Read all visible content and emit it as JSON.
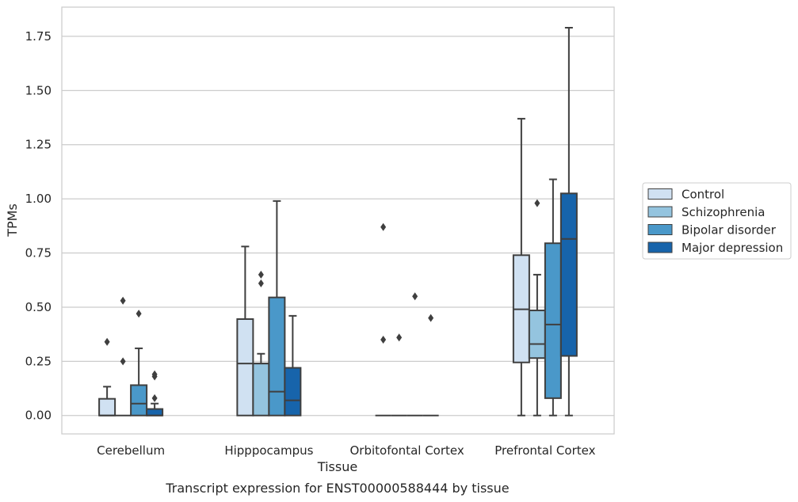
{
  "chart_data": {
    "type": "box",
    "title": "",
    "caption": "Transcript expression for ENST00000588444 by tissue",
    "xlabel": "Tissue",
    "ylabel": "TPMs",
    "ylim": [
      -0.085,
      1.885
    ],
    "yticks": [
      "0.00",
      "0.25",
      "0.50",
      "0.75",
      "1.00",
      "1.25",
      "1.50",
      "1.75"
    ],
    "grid": "horizontal",
    "legend_position": "right",
    "categories": [
      "Cerebellum",
      "Hipppocampus",
      "Orbitofontal Cortex",
      "Prefrontal Cortex"
    ],
    "series": [
      {
        "name": "Control",
        "color": "#d0e1f2",
        "boxes": [
          {
            "whisker_low": 0.0,
            "q1": 0.0,
            "median": 0.0,
            "q3": 0.077,
            "whisker_high": 0.133,
            "outliers": [
              0.34
            ]
          },
          {
            "whisker_low": 0.0,
            "q1": 0.0,
            "median": 0.24,
            "q3": 0.445,
            "whisker_high": 0.78,
            "outliers": []
          },
          {
            "whisker_low": 0.0,
            "q1": 0.0,
            "median": 0.0,
            "q3": 0.0,
            "whisker_high": 0.0,
            "outliers": [
              0.35,
              0.87
            ]
          },
          {
            "whisker_low": 0.0,
            "q1": 0.245,
            "median": 0.49,
            "q3": 0.74,
            "whisker_high": 1.37,
            "outliers": []
          }
        ]
      },
      {
        "name": "Schizophrenia",
        "color": "#94c4df",
        "boxes": [
          {
            "whisker_low": 0.0,
            "q1": 0.0,
            "median": 0.0,
            "q3": 0.0,
            "whisker_high": 0.0,
            "outliers": [
              0.25,
              0.53
            ]
          },
          {
            "whisker_low": 0.0,
            "q1": 0.0,
            "median": 0.24,
            "q3": 0.24,
            "whisker_high": 0.285,
            "outliers": [
              0.61,
              0.65
            ]
          },
          {
            "whisker_low": 0.0,
            "q1": 0.0,
            "median": 0.0,
            "q3": 0.0,
            "whisker_high": 0.0,
            "outliers": [
              0.36
            ]
          },
          {
            "whisker_low": 0.0,
            "q1": 0.265,
            "median": 0.33,
            "q3": 0.485,
            "whisker_high": 0.65,
            "outliers": [
              0.98
            ]
          }
        ]
      },
      {
        "name": "Bipolar disorder",
        "color": "#4a98c9",
        "boxes": [
          {
            "whisker_low": 0.0,
            "q1": 0.0,
            "median": 0.055,
            "q3": 0.14,
            "whisker_high": 0.31,
            "outliers": [
              0.47
            ]
          },
          {
            "whisker_low": 0.0,
            "q1": 0.0,
            "median": 0.11,
            "q3": 0.545,
            "whisker_high": 0.99,
            "outliers": []
          },
          {
            "whisker_low": 0.0,
            "q1": 0.0,
            "median": 0.0,
            "q3": 0.0,
            "whisker_high": 0.0,
            "outliers": [
              0.55
            ]
          },
          {
            "whisker_low": 0.0,
            "q1": 0.08,
            "median": 0.42,
            "q3": 0.795,
            "whisker_high": 1.09,
            "outliers": []
          }
        ]
      },
      {
        "name": "Major depression",
        "color": "#1764ab",
        "boxes": [
          {
            "whisker_low": 0.0,
            "q1": 0.0,
            "median": 0.0,
            "q3": 0.03,
            "whisker_high": 0.055,
            "outliers": [
              0.08,
              0.18,
              0.19
            ]
          },
          {
            "whisker_low": 0.0,
            "q1": 0.0,
            "median": 0.07,
            "q3": 0.22,
            "whisker_high": 0.46,
            "outliers": []
          },
          {
            "whisker_low": 0.0,
            "q1": 0.0,
            "median": 0.0,
            "q3": 0.0,
            "whisker_high": 0.0,
            "outliers": [
              0.45
            ]
          },
          {
            "whisker_low": 0.0,
            "q1": 0.275,
            "median": 0.815,
            "q3": 1.025,
            "whisker_high": 1.79,
            "outliers": []
          }
        ]
      }
    ]
  }
}
